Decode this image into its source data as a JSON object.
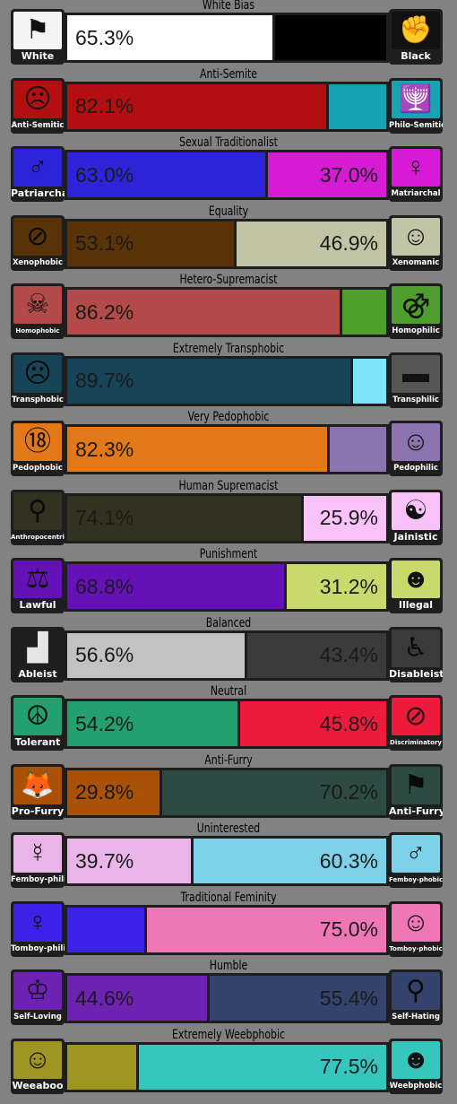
{
  "rows": [
    {
      "title": "White Bias",
      "left": {
        "label": "White",
        "color": "#ffffff",
        "bg": "#f4f4f4",
        "icon": "kkk-flag-icon",
        "glyph": "⚑"
      },
      "right": {
        "label": "Black",
        "color": "#000000",
        "bg": "#111111",
        "icon": "black-fist-icon",
        "glyph": "✊"
      },
      "left_pct": 65.3,
      "left_text": "65.3%",
      "right_text": ""
    },
    {
      "title": "Anti-Semite",
      "left": {
        "label": "Anti-Semitic",
        "color": "#b30f10",
        "bg": "#b30f10",
        "icon": "antisemitic-figure-icon",
        "glyph": "☹",
        "small": true
      },
      "right": {
        "label": "Philo-Semitic",
        "color": "#17a3b2",
        "bg": "#17a3b2",
        "icon": "menorah-icon",
        "glyph": "🕎",
        "small": true
      },
      "left_pct": 82.1,
      "left_text": "82.1%",
      "right_text": ""
    },
    {
      "title": "Sexual Traditionalist",
      "left": {
        "label": "Patriarchal",
        "color": "#2d24d9",
        "bg": "#2d24d9",
        "icon": "male-figure-icon",
        "glyph": "♂"
      },
      "right": {
        "label": "Matriarchal",
        "color": "#d61ad6",
        "bg": "#d61ad6",
        "icon": "female-figure-icon",
        "glyph": "♀",
        "small": true
      },
      "left_pct": 63.0,
      "left_text": "63.0%",
      "right_text": "37.0%"
    },
    {
      "title": "Equality",
      "left": {
        "label": "Xenophobic",
        "color": "#5b3308",
        "bg": "#5b3308",
        "icon": "no-alien-icon",
        "glyph": "⊘",
        "small": true
      },
      "right": {
        "label": "Xenomanic",
        "color": "#c2c4a6",
        "bg": "#c2c4a6",
        "icon": "crowd-icon",
        "glyph": "☺",
        "small": true
      },
      "left_pct": 53.1,
      "left_text": "53.1%",
      "right_text": "46.9%"
    },
    {
      "title": "Hetero-Supremacist",
      "left": {
        "label": "Homophobic",
        "color": "#b34a4a",
        "bg": "#b34a4a",
        "icon": "hanged-figure-icon",
        "glyph": "☠",
        "tiny": true
      },
      "right": {
        "label": "Homophilic",
        "color": "#4e9e2d",
        "bg": "#4e9e2d",
        "icon": "double-male-icon",
        "glyph": "⚣",
        "small": true
      },
      "left_pct": 86.2,
      "left_text": "86.2%",
      "right_text": ""
    },
    {
      "title": "Extremely Transphobic",
      "left": {
        "label": "Transphobic",
        "color": "#174456",
        "bg": "#174456",
        "icon": "transphobic-face-icon",
        "glyph": "☹",
        "small": true
      },
      "right": {
        "label": "Transphilic",
        "color": "#7ae5f9",
        "bg": "#555555",
        "icon": "trans-flag-icon",
        "glyph": "▬",
        "small": true
      },
      "left_pct": 89.7,
      "left_text": "89.7%",
      "right_text": ""
    },
    {
      "title": "Very Pedophobic",
      "left": {
        "label": "Pedophobic",
        "color": "#e27817",
        "bg": "#e27817",
        "icon": "eighteen-plus-icon",
        "glyph": "⑱",
        "small": true
      },
      "right": {
        "label": "Pedophilic",
        "color": "#8b74b0",
        "bg": "#8b74b0",
        "icon": "child-figure-icon",
        "glyph": "☺",
        "small": true
      },
      "left_pct": 82.3,
      "left_text": "82.3%",
      "right_text": ""
    },
    {
      "title": "Human Supremacist",
      "left": {
        "label": "Anthropocentric",
        "color": "#33311f",
        "bg": "#33311f",
        "icon": "hanged-animal-icon",
        "glyph": "⚲",
        "tiny": true
      },
      "right": {
        "label": "Jainistic",
        "color": "#f9c2f9",
        "bg": "#f9c2f9",
        "icon": "meditating-face-icon",
        "glyph": "☯"
      },
      "left_pct": 74.1,
      "left_text": "74.1%",
      "right_text": "25.9%"
    },
    {
      "title": "Punishment",
      "left": {
        "label": "Lawful",
        "color": "#6412b8",
        "bg": "#6412b8",
        "icon": "scales-icon",
        "glyph": "⚖"
      },
      "right": {
        "label": "Illegal",
        "color": "#c9d96b",
        "bg": "#c9d96b",
        "icon": "robber-icon",
        "glyph": "☻"
      },
      "left_pct": 68.8,
      "left_text": "68.8%",
      "right_text": "31.2%"
    },
    {
      "title": "Balanced",
      "left": {
        "label": "Ableist",
        "color": "#c2c2c2",
        "bg": "#1e1e1e",
        "icon": "staircase-icon",
        "glyph": "▟",
        "lightglyph": true
      },
      "right": {
        "label": "Disableist",
        "color": "#3b3b3b",
        "bg": "#3b3b3b",
        "icon": "wheelchair-icon",
        "glyph": "♿"
      },
      "left_pct": 56.6,
      "left_text": "56.6%",
      "right_text": "43.4%"
    },
    {
      "title": "Neutral",
      "left": {
        "label": "Tolerant",
        "color": "#22a06e",
        "bg": "#22a06e",
        "icon": "coexist-icon",
        "glyph": "☮"
      },
      "right": {
        "label": "Discriminatory",
        "color": "#ee1a3c",
        "bg": "#ee1a3c",
        "icon": "prohibited-icon",
        "glyph": "⊘",
        "tiny": true
      },
      "left_pct": 54.2,
      "left_text": "54.2%",
      "right_text": "45.8%"
    },
    {
      "title": "Anti-Furry",
      "left": {
        "label": "Pro-Furry",
        "color": "#a85107",
        "bg": "#a85107",
        "icon": "fox-icon",
        "glyph": "🦊"
      },
      "right": {
        "label": "Anti-Furry",
        "color": "#2d4b42",
        "bg": "#2d4b42",
        "icon": "anti-furry-flag-icon",
        "glyph": "⚑"
      },
      "left_pct": 29.8,
      "left_text": "29.8%",
      "right_text": "70.2%"
    },
    {
      "title": "Uninterested",
      "left": {
        "label": "Femboy-philic",
        "color": "#e9b5e9",
        "bg": "#e9b5e9",
        "icon": "femboy-symbol-icon",
        "glyph": "☿",
        "small": true
      },
      "right": {
        "label": "Femboy-phobic",
        "color": "#7cd0e7",
        "bg": "#7cd0e7",
        "icon": "male-symbol-icon",
        "glyph": "♂",
        "tiny": true
      },
      "left_pct": 39.7,
      "left_text": "39.7%",
      "right_text": "60.3%"
    },
    {
      "title": "Traditional Feminity",
      "left": {
        "label": "Tomboy-philic",
        "color": "#3b22e8",
        "bg": "#3b22e8",
        "icon": "tomboy-figure-icon",
        "glyph": "♀",
        "small": true
      },
      "right": {
        "label": "Tomboy-phobic",
        "color": "#f077b5",
        "bg": "#f077b5",
        "icon": "feminine-face-icon",
        "glyph": "☺",
        "tiny": true
      },
      "left_pct": 25.0,
      "left_text": "",
      "right_text": "75.0%"
    },
    {
      "title": "Humble",
      "left": {
        "label": "Self-Loving",
        "color": "#6d22b2",
        "bg": "#6d22b2",
        "icon": "crown-icon",
        "glyph": "♔",
        "small": true
      },
      "right": {
        "label": "Self-Hating",
        "color": "#33436b",
        "bg": "#33436b",
        "icon": "noose-icon",
        "glyph": "⚲",
        "small": true
      },
      "left_pct": 44.6,
      "left_text": "44.6%",
      "right_text": "55.4%"
    },
    {
      "title": "Extremely Weebphobic",
      "left": {
        "label": "Weeaboo",
        "color": "#9e9621",
        "bg": "#9e9621",
        "icon": "anime-girl-icon",
        "glyph": "☺"
      },
      "right": {
        "label": "Weebphobic",
        "color": "#35c7bd",
        "bg": "#35c7bd",
        "icon": "monster-face-icon",
        "glyph": "☻",
        "small": true
      },
      "left_pct": 22.5,
      "left_text": "",
      "right_text": "77.5%"
    }
  ]
}
